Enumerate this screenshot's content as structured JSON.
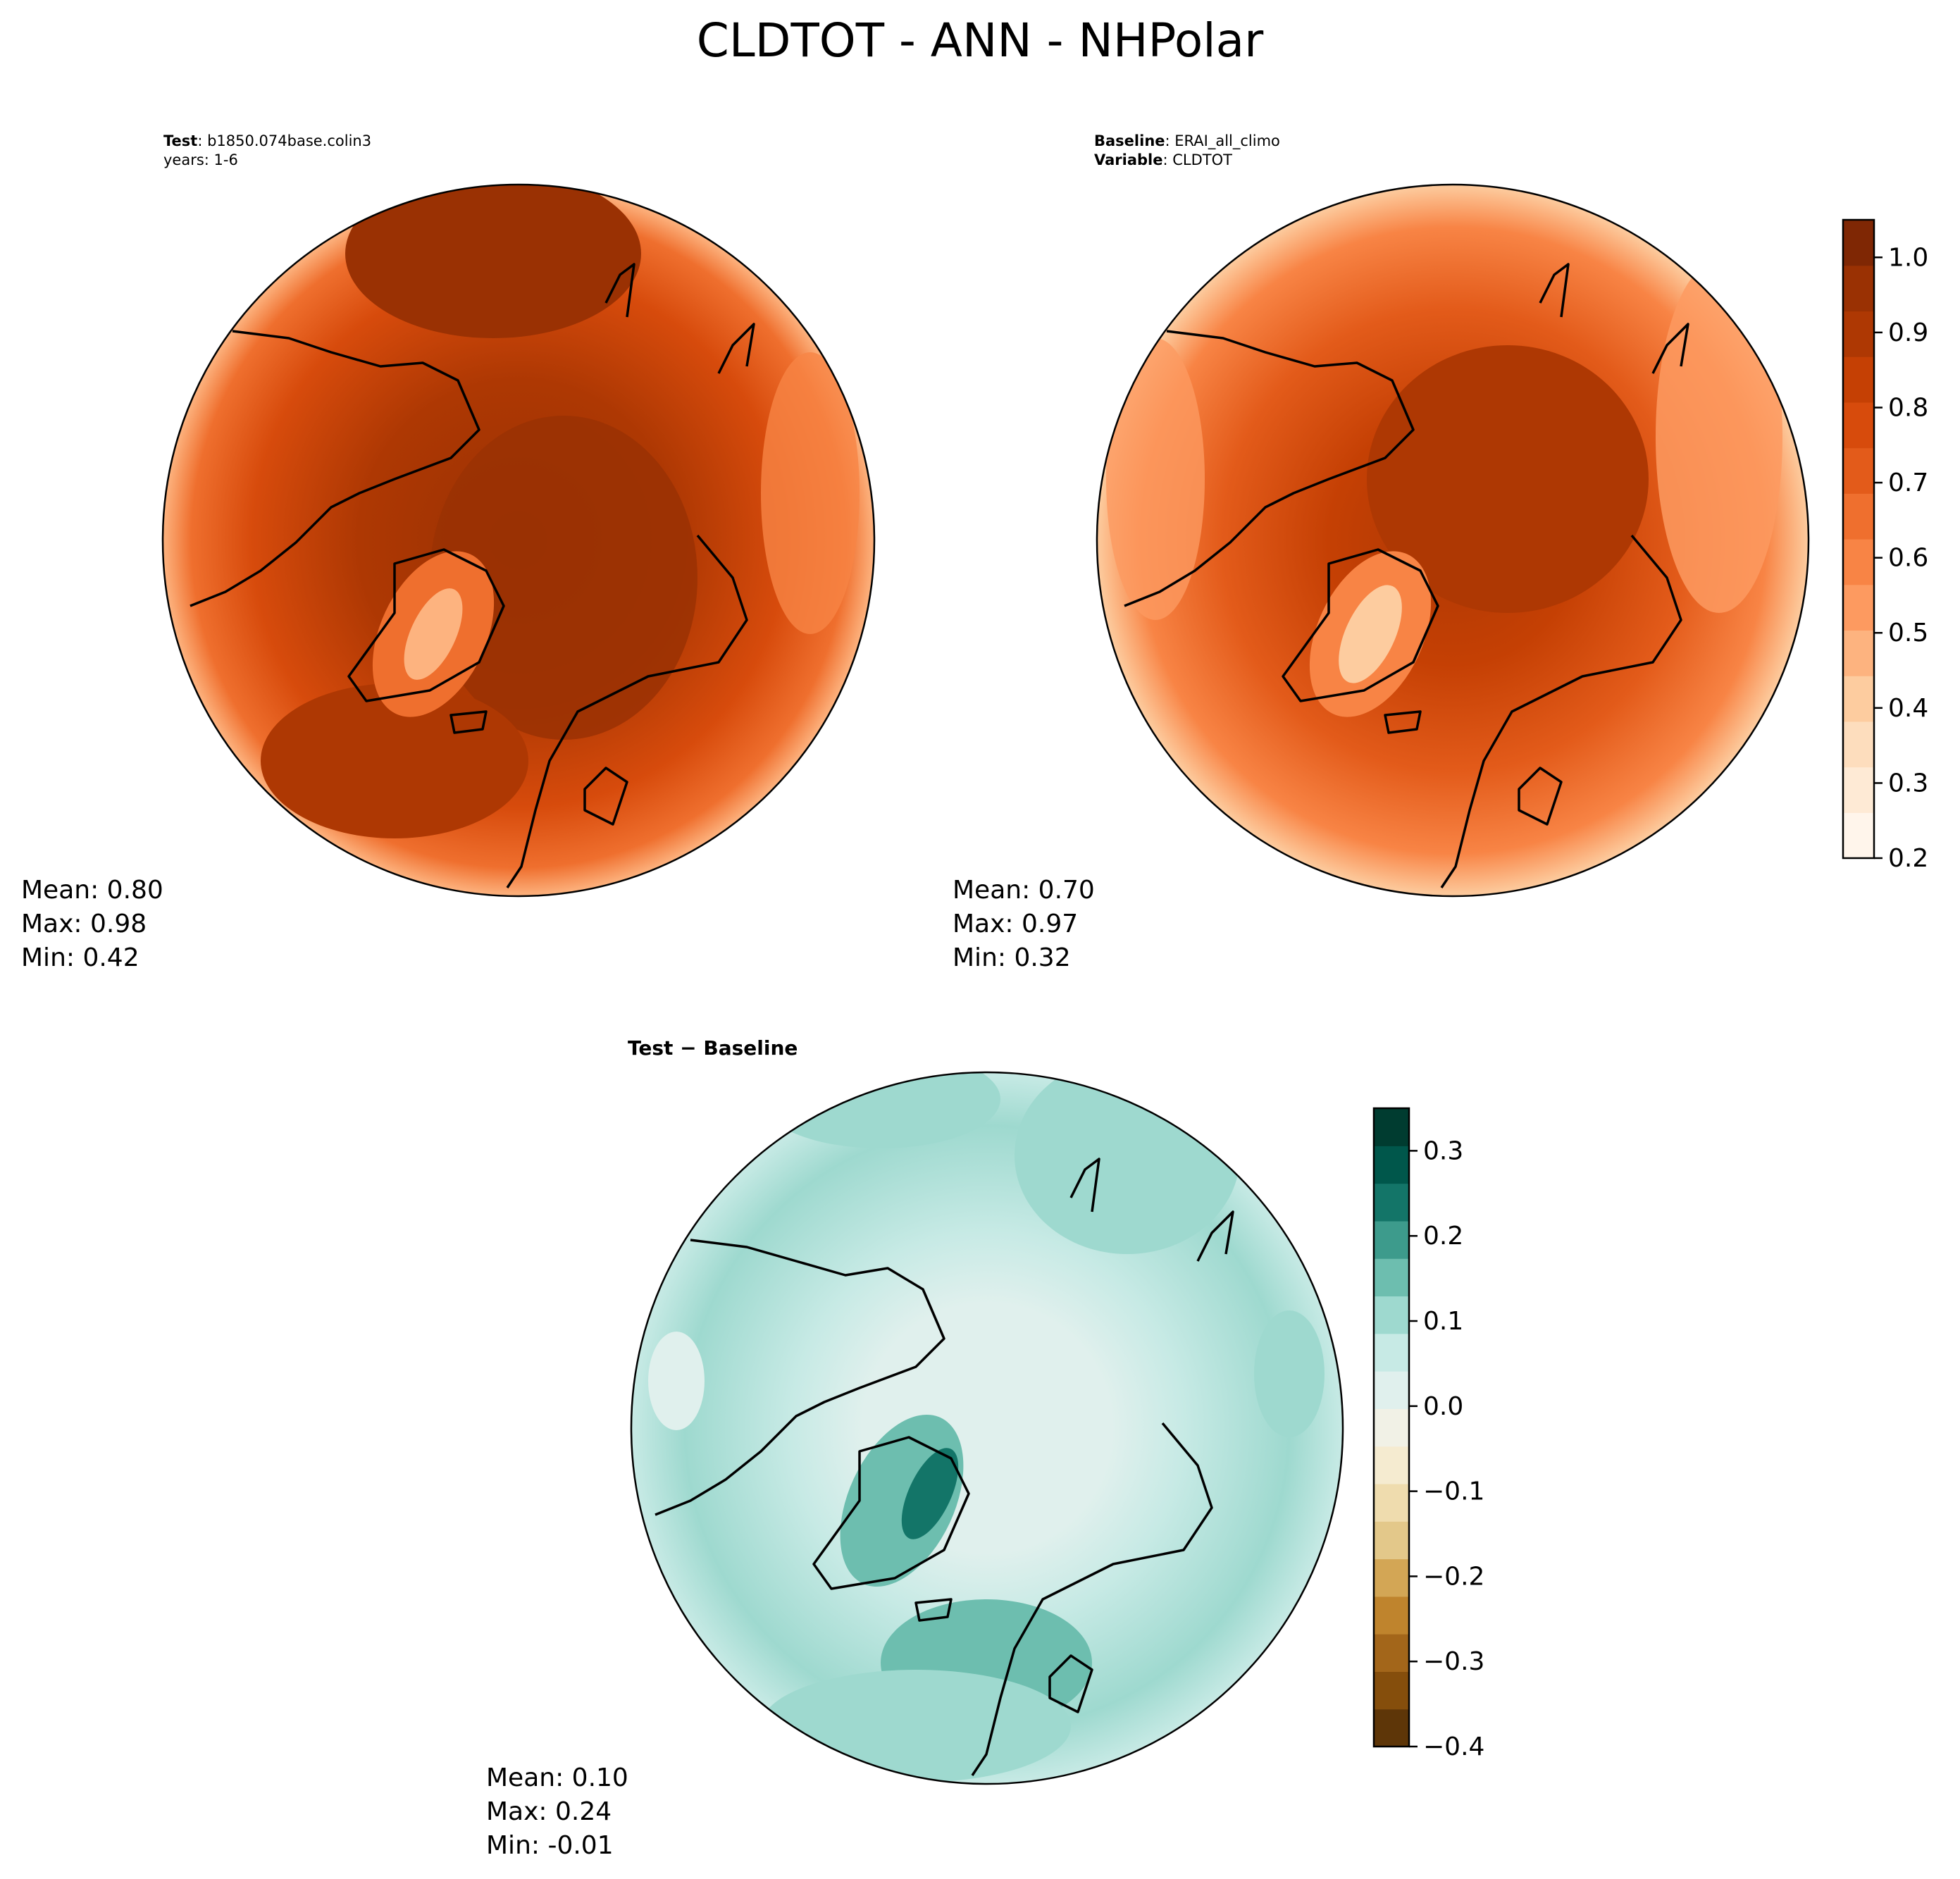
{
  "figure": {
    "title": "CLDTOT - ANN - NHPolar"
  },
  "panels": [
    {
      "id": "test",
      "header": [
        {
          "bold": "Test",
          "sep": ": ",
          "text": "b1850.074base.colin3"
        },
        {
          "bold": "",
          "sep": "",
          "text": "years: 1-6"
        }
      ],
      "stats": {
        "mean": "Mean:  0.80",
        "max": "Max:  0.98",
        "min": "Min:  0.42"
      },
      "palette": "oranges"
    },
    {
      "id": "baseline",
      "header": [
        {
          "bold": "Baseline",
          "sep": ": ",
          "text": "ERAI_all_climo"
        },
        {
          "bold": "Variable",
          "sep": ": ",
          "text": "CLDTOT"
        }
      ],
      "stats": {
        "mean": "Mean:  0.70",
        "max": "Max:  0.97",
        "min": "Min:  0.32"
      },
      "palette": "oranges"
    },
    {
      "id": "diff",
      "header": [
        {
          "bold": "Test − Baseline",
          "sep": "",
          "text": ""
        }
      ],
      "stats": {
        "mean": "Mean:  0.10",
        "max": "Max:  0.24",
        "min": "Min: -0.01"
      },
      "palette": "brbg"
    }
  ],
  "colorbars": {
    "top": {
      "ticks": [
        "0.2",
        "0.3",
        "0.4",
        "0.5",
        "0.6",
        "0.7",
        "0.8",
        "0.9",
        "1.0"
      ],
      "tick_values": [
        0.2,
        0.3,
        0.4,
        0.5,
        0.6,
        0.7,
        0.8,
        0.9,
        1.0
      ],
      "range": [
        0.2,
        1.05
      ],
      "colors": [
        "#fff5eb",
        "#feead5",
        "#fdddbd",
        "#fdcc9f",
        "#fdb37f",
        "#fd9a60",
        "#f88445",
        "#ef6f2e",
        "#e35b1a",
        "#d74b0c",
        "#c54004",
        "#ae3803",
        "#9a3103",
        "#7f2704"
      ]
    },
    "diff": {
      "ticks": [
        "−0.4",
        "−0.3",
        "−0.2",
        "−0.1",
        "0.0",
        "0.1",
        "0.2",
        "0.3"
      ],
      "tick_values": [
        -0.4,
        -0.3,
        -0.2,
        -0.1,
        0.0,
        0.1,
        0.2,
        0.3
      ],
      "range": [
        -0.4,
        0.35
      ],
      "colors": [
        "#5e3608",
        "#854e0c",
        "#a3661a",
        "#bf842d",
        "#d3a655",
        "#e3c88a",
        "#efdcae",
        "#f5ebd0",
        "#f1f1e6",
        "#e0f0ed",
        "#c7eae5",
        "#9ed9cf",
        "#6dbeaf",
        "#3d9b8c",
        "#137568",
        "#00574b",
        "#003c30"
      ]
    }
  },
  "chart_data": [
    {
      "type": "heatmap",
      "title": "Test: b1850.074base.colin3",
      "projection": "north polar stereographic",
      "variable": "CLDTOT",
      "period": "ANN",
      "mean": 0.8,
      "max": 0.98,
      "min": 0.42,
      "colorbar_range": [
        0.2,
        1.05
      ]
    },
    {
      "type": "heatmap",
      "title": "Baseline: ERAI_all_climo",
      "projection": "north polar stereographic",
      "variable": "CLDTOT",
      "period": "ANN",
      "mean": 0.7,
      "max": 0.97,
      "min": 0.32,
      "colorbar_range": [
        0.2,
        1.05
      ]
    },
    {
      "type": "heatmap",
      "title": "Test − Baseline",
      "projection": "north polar stereographic",
      "variable": "CLDTOT",
      "period": "ANN",
      "mean": 0.1,
      "max": 0.24,
      "min": -0.01,
      "colorbar_range": [
        -0.4,
        0.35
      ]
    }
  ]
}
